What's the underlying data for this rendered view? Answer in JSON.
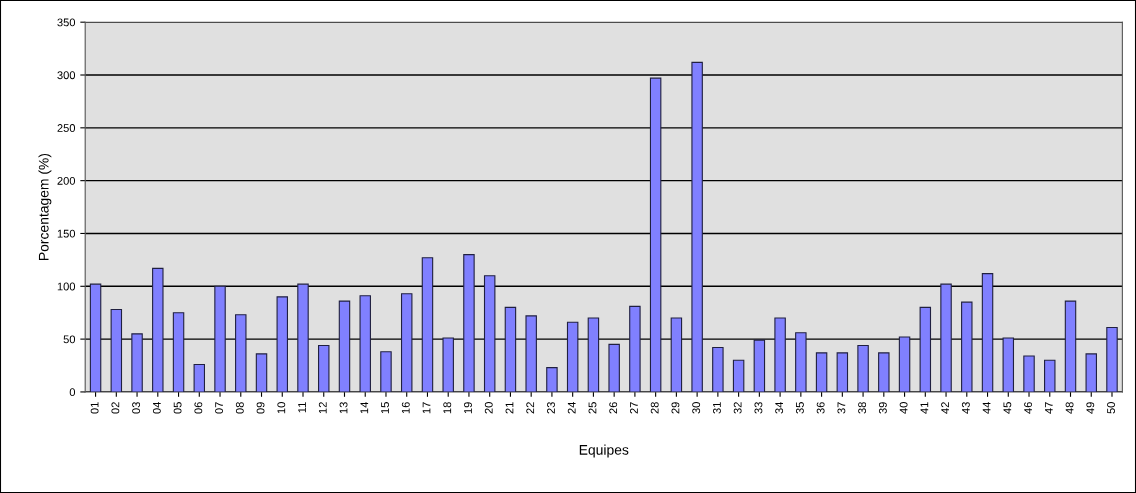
{
  "chart_data": {
    "type": "bar",
    "xlabel": "Equipes",
    "ylabel": "Porcentagem (%)",
    "categories": [
      "01",
      "02",
      "03",
      "04",
      "05",
      "06",
      "07",
      "08",
      "09",
      "10",
      "11",
      "12",
      "13",
      "14",
      "15",
      "16",
      "17",
      "18",
      "19",
      "20",
      "21",
      "22",
      "23",
      "24",
      "25",
      "26",
      "27",
      "28",
      "29",
      "30",
      "31",
      "32",
      "33",
      "34",
      "35",
      "36",
      "37",
      "38",
      "39",
      "40",
      "41",
      "42",
      "43",
      "44",
      "45",
      "46",
      "47",
      "48",
      "49",
      "50"
    ],
    "values": [
      102,
      78,
      55,
      117,
      75,
      26,
      100,
      73,
      36,
      90,
      102,
      44,
      86,
      91,
      38,
      93,
      127,
      51,
      130,
      110,
      80,
      72,
      23,
      66,
      70,
      45,
      81,
      297,
      70,
      312,
      42,
      30,
      49,
      70,
      56,
      37,
      37,
      44,
      37,
      52,
      80,
      102,
      85,
      112,
      51,
      34,
      30,
      86,
      36,
      61
    ],
    "color": "#8080ff",
    "ylim": [
      0,
      350
    ],
    "yticks": [
      0,
      50,
      100,
      150,
      200,
      250,
      300,
      350
    ],
    "grid": "y"
  }
}
